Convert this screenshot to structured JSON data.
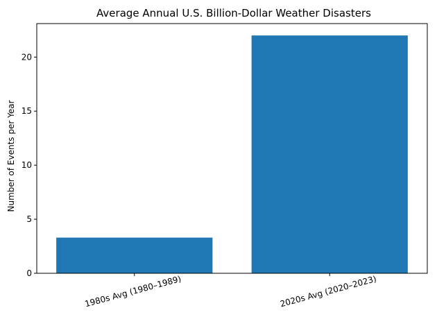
{
  "chart_data": {
    "type": "bar",
    "title": "Average Annual U.S. Billion-Dollar Weather Disasters",
    "xlabel": "",
    "ylabel": "Number of Events per Year",
    "categories": [
      "1980s Avg (1980–1989)",
      "2020s Avg (2020–2023)"
    ],
    "values": [
      3.3,
      22.0
    ],
    "ylim": [
      0,
      23.1
    ],
    "yticks": [
      0,
      5,
      10,
      15,
      20
    ],
    "bar_color": "#1f77b4",
    "grid": false,
    "legend": "none"
  }
}
